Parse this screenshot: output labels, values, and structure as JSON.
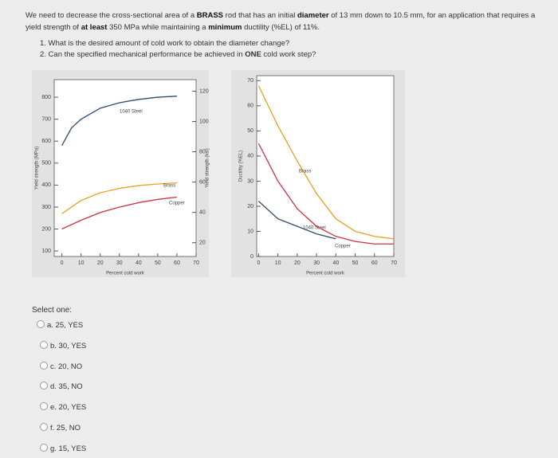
{
  "question": {
    "intro": [
      "We need to decrease the cross-sectional area of a ",
      "BRASS",
      " rod that has an initial ",
      "diameter",
      " of 13 mm down to 10.5 mm, for an application that requires a yield strength of ",
      "at least",
      " 350 MPa while maintaining a ",
      "minimum",
      " ductility (%EL) of 11%."
    ],
    "items": [
      "1. What is the desired amount of cold work to obtain the diameter change?",
      "2. Can the specified mechanical performance be achieved in "
    ],
    "item_bold": "ONE",
    "item_tail": " cold work step?"
  },
  "chart_data": [
    {
      "type": "line",
      "x": [
        0,
        5,
        10,
        20,
        30,
        40,
        50,
        60
      ],
      "xlabel": "Percent cold work",
      "ylabel": "Yield strength (MPa)",
      "y2label": "Yield strength (ksi)",
      "xlim": [
        -4,
        70
      ],
      "xticks": [
        0,
        10,
        20,
        30,
        40,
        50,
        60,
        70
      ],
      "ylim": [
        75,
        880
      ],
      "yticks": [
        100,
        200,
        300,
        400,
        500,
        600,
        700,
        800
      ],
      "y2lim": [
        10.9,
        127.6
      ],
      "y2ticks": [
        20,
        40,
        60,
        80,
        100,
        120
      ],
      "series": [
        {
          "name": "1040 Steel",
          "color": "#2c4a70",
          "values": [
            580,
            660,
            700,
            750,
            775,
            790,
            800,
            805
          ]
        },
        {
          "name": "Brass",
          "color": "#e8a020",
          "values": [
            270,
            300,
            330,
            365,
            385,
            398,
            405,
            410
          ]
        },
        {
          "name": "Copper",
          "color": "#d03040",
          "values": [
            200,
            220,
            240,
            275,
            300,
            320,
            335,
            345
          ]
        }
      ]
    },
    {
      "type": "line",
      "x": [
        0,
        10,
        20,
        30,
        40,
        50,
        60,
        70
      ],
      "xlabel": "Percent cold work",
      "ylabel": "Ductility (%EL)",
      "xlim": [
        -1,
        70
      ],
      "xticks": [
        0,
        10,
        20,
        30,
        40,
        50,
        60,
        70
      ],
      "ylim": [
        0,
        72
      ],
      "yticks": [
        0,
        10,
        20,
        30,
        40,
        50,
        60,
        70
      ],
      "series": [
        {
          "name": "Brass",
          "color": "#e8a020",
          "values": [
            68,
            52,
            38,
            25,
            15,
            10,
            8,
            7
          ]
        },
        {
          "name": "1040 Steel",
          "color": "#2c4a70",
          "values": [
            22,
            15,
            12,
            9,
            7,
            null,
            null,
            null
          ]
        },
        {
          "name": "Copper",
          "color": "#d03040",
          "values": [
            45,
            30,
            19,
            12,
            8,
            6,
            5,
            5
          ]
        }
      ]
    }
  ],
  "select_label": "Select one:",
  "options": [
    "a. 25, YES",
    "b. 30, YES",
    "c. 20, NO",
    "d. 35, NO",
    "e. 20, YES",
    "f. 25, NO",
    "g. 15, YES"
  ]
}
